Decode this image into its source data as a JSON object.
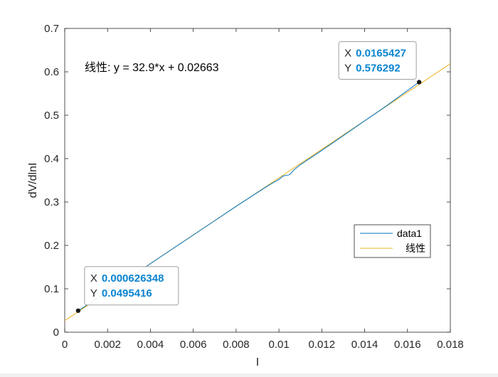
{
  "chart_data": {
    "type": "line",
    "xlabel": "I",
    "ylabel": "dV/dlnI",
    "xlim": [
      0,
      0.018
    ],
    "ylim": [
      0,
      0.7
    ],
    "xticks": [
      0,
      0.002,
      0.004,
      0.006,
      0.008,
      0.01,
      0.012,
      0.014,
      0.016,
      0.018
    ],
    "xtick_labels": [
      "0",
      "0.002",
      "0.004",
      "0.006",
      "0.008",
      "0.01",
      "0.012",
      "0.014",
      "0.016",
      "0.018"
    ],
    "yticks": [
      0,
      0.1,
      0.2,
      0.3,
      0.4,
      0.5,
      0.6,
      0.7
    ],
    "ytick_labels": [
      "0",
      "0.1",
      "0.2",
      "0.3",
      "0.4",
      "0.5",
      "0.6",
      "0.7"
    ],
    "grid": false,
    "legend_position": "lower-right",
    "series": [
      {
        "name": "data1",
        "color": "#0072bd",
        "x": [
          0.000626,
          0.002,
          0.003,
          0.004,
          0.005,
          0.006,
          0.007,
          0.008,
          0.009,
          0.0095,
          0.01,
          0.0102,
          0.0104,
          0.0105,
          0.0107,
          0.011,
          0.012,
          0.013,
          0.014,
          0.015,
          0.016,
          0.0165427
        ],
        "y": [
          0.0495,
          0.093,
          0.124,
          0.158,
          0.191,
          0.224,
          0.257,
          0.29,
          0.322,
          0.338,
          0.352,
          0.36,
          0.362,
          0.363,
          0.374,
          0.386,
          0.419,
          0.453,
          0.487,
          0.521,
          0.557,
          0.576292
        ]
      },
      {
        "name": "线性",
        "color": "#edb120",
        "x": [
          0,
          0.018
        ],
        "y": [
          0.02663,
          0.61883
        ]
      }
    ],
    "annotation": "线性:  y = 32.9*x + 0.02663",
    "datatips": [
      {
        "x_label": "X",
        "x_value": "0.000626348",
        "y_label": "Y",
        "y_value": "0.0495416",
        "x": 0.000626348,
        "y": 0.0495416
      },
      {
        "x_label": "X",
        "x_value": "0.0165427",
        "y_label": "Y",
        "y_value": "0.576292",
        "x": 0.0165427,
        "y": 0.576292
      }
    ]
  }
}
